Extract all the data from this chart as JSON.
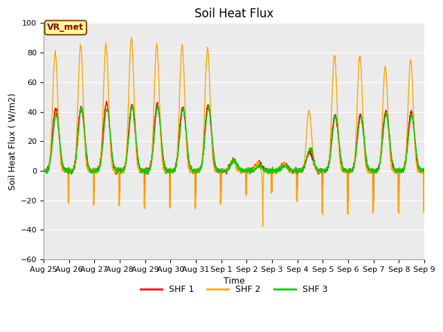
{
  "title": "Soil Heat Flux",
  "ylabel": "Soil Heat Flux ( W/m2)",
  "xlabel": "Time",
  "ylim": [
    -60,
    100
  ],
  "yticks": [
    -60,
    -40,
    -20,
    0,
    20,
    40,
    60,
    80,
    100
  ],
  "xtick_labels": [
    "Aug 25",
    "Aug 26",
    "Aug 27",
    "Aug 28",
    "Aug 29",
    "Aug 30",
    "Aug 31",
    "Sep 1",
    "Sep 2",
    "Sep 3",
    "Sep 4",
    "Sep 5",
    "Sep 6",
    "Sep 7",
    "Sep 8",
    "Sep 9"
  ],
  "colors": {
    "SHF 1": "#ff0000",
    "SHF 2": "#ffa500",
    "SHF 3": "#00cc00"
  },
  "plot_bg": "#ebebeb",
  "fig_bg": "#ffffff",
  "legend_box_facecolor": "#ffff99",
  "legend_box_edgecolor": "#8B4513",
  "legend_box_text": "VR_met",
  "legend_text_color": "#8B0000",
  "grid_color": "#ffffff",
  "n_days": 15,
  "pts_per_day": 144,
  "title_fontsize": 12,
  "axis_label_fontsize": 9,
  "tick_fontsize": 8,
  "linewidth": 1.0
}
